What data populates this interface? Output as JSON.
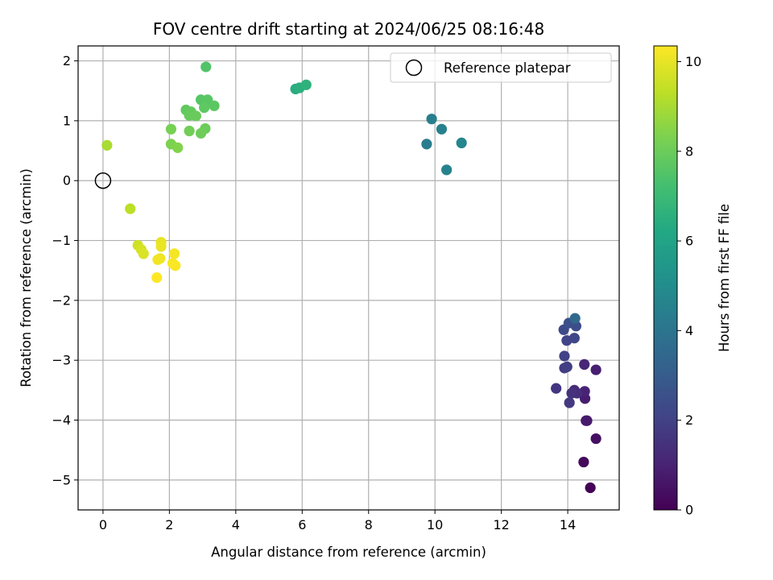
{
  "chart_data": {
    "type": "scatter",
    "title": "FOV centre drift starting at 2024/06/25 08:16:48",
    "xlabel": "Angular distance from reference (arcmin)",
    "ylabel": "Rotation from reference (arcmin)",
    "xlim": [
      -0.75,
      15.55
    ],
    "ylim": [
      -5.5,
      2.25
    ],
    "xticks": [
      0,
      2,
      4,
      6,
      8,
      10,
      12,
      14
    ],
    "yticks": [
      2,
      1,
      0,
      -1,
      -2,
      -3,
      -4,
      -5
    ],
    "grid": true,
    "legend": {
      "position": "top-right",
      "entries": [
        "Reference platepar"
      ]
    },
    "reference_point": {
      "x": 0,
      "y": 0
    },
    "colorbar": {
      "label": "Hours from first FF file",
      "colormap": "viridis",
      "range": [
        0,
        10.35
      ],
      "ticks": [
        0,
        2,
        4,
        6,
        8,
        10
      ]
    },
    "points": [
      {
        "x": 14.68,
        "y": -5.13,
        "c": 0.05
      },
      {
        "x": 14.48,
        "y": -4.7,
        "c": 0.25
      },
      {
        "x": 14.85,
        "y": -4.31,
        "c": 0.45
      },
      {
        "x": 14.58,
        "y": -4.01,
        "c": 0.65
      },
      {
        "x": 14.55,
        "y": -4.01,
        "c": 0.75
      },
      {
        "x": 14.52,
        "y": -3.64,
        "c": 0.85
      },
      {
        "x": 14.51,
        "y": -3.52,
        "c": 1.0
      },
      {
        "x": 14.5,
        "y": -3.07,
        "c": 1.1
      },
      {
        "x": 14.85,
        "y": -3.16,
        "c": 0.9
      },
      {
        "x": 14.2,
        "y": -3.5,
        "c": 1.25
      },
      {
        "x": 14.28,
        "y": -3.55,
        "c": 1.35
      },
      {
        "x": 14.12,
        "y": -3.55,
        "c": 1.45
      },
      {
        "x": 13.65,
        "y": -3.47,
        "c": 1.6
      },
      {
        "x": 14.05,
        "y": -3.71,
        "c": 1.7
      },
      {
        "x": 13.9,
        "y": -3.13,
        "c": 1.8
      },
      {
        "x": 13.98,
        "y": -3.11,
        "c": 1.9
      },
      {
        "x": 13.9,
        "y": -2.93,
        "c": 2.0
      },
      {
        "x": 13.97,
        "y": -2.67,
        "c": 2.1
      },
      {
        "x": 14.2,
        "y": -2.63,
        "c": 2.2
      },
      {
        "x": 13.88,
        "y": -2.49,
        "c": 2.3
      },
      {
        "x": 14.25,
        "y": -2.43,
        "c": 2.4
      },
      {
        "x": 14.03,
        "y": -2.38,
        "c": 2.5
      },
      {
        "x": 14.22,
        "y": -2.3,
        "c": 3.5
      },
      {
        "x": 9.75,
        "y": 0.61,
        "c": 4.3
      },
      {
        "x": 9.9,
        "y": 1.03,
        "c": 4.4
      },
      {
        "x": 10.2,
        "y": 0.86,
        "c": 4.5
      },
      {
        "x": 10.35,
        "y": 0.18,
        "c": 4.6
      },
      {
        "x": 10.8,
        "y": 0.63,
        "c": 4.7
      },
      {
        "x": 5.8,
        "y": 1.53,
        "c": 6.4
      },
      {
        "x": 5.92,
        "y": 1.55,
        "c": 6.5
      },
      {
        "x": 6.12,
        "y": 1.6,
        "c": 6.6
      },
      {
        "x": 3.1,
        "y": 1.9,
        "c": 7.5
      },
      {
        "x": 2.95,
        "y": 1.35,
        "c": 7.6
      },
      {
        "x": 3.15,
        "y": 1.35,
        "c": 7.65
      },
      {
        "x": 3.35,
        "y": 1.25,
        "c": 7.7
      },
      {
        "x": 3.05,
        "y": 1.22,
        "c": 7.75
      },
      {
        "x": 2.5,
        "y": 1.18,
        "c": 7.8
      },
      {
        "x": 2.65,
        "y": 1.15,
        "c": 7.85
      },
      {
        "x": 2.6,
        "y": 1.09,
        "c": 7.9
      },
      {
        "x": 2.8,
        "y": 1.08,
        "c": 7.95
      },
      {
        "x": 3.08,
        "y": 0.87,
        "c": 8.0
      },
      {
        "x": 2.95,
        "y": 0.79,
        "c": 8.05
      },
      {
        "x": 2.6,
        "y": 0.83,
        "c": 8.1
      },
      {
        "x": 2.05,
        "y": 0.86,
        "c": 8.2
      },
      {
        "x": 2.05,
        "y": 0.61,
        "c": 8.3
      },
      {
        "x": 2.25,
        "y": 0.55,
        "c": 8.4
      },
      {
        "x": 0.12,
        "y": 0.59,
        "c": 9.0
      },
      {
        "x": 0.82,
        "y": -0.47,
        "c": 9.3
      },
      {
        "x": 1.05,
        "y": -1.08,
        "c": 9.6
      },
      {
        "x": 1.15,
        "y": -1.15,
        "c": 9.7
      },
      {
        "x": 1.22,
        "y": -1.22,
        "c": 9.8
      },
      {
        "x": 1.75,
        "y": -1.03,
        "c": 10.0
      },
      {
        "x": 1.75,
        "y": -1.1,
        "c": 10.05
      },
      {
        "x": 1.72,
        "y": -1.3,
        "c": 10.1
      },
      {
        "x": 1.65,
        "y": -1.32,
        "c": 10.15
      },
      {
        "x": 2.15,
        "y": -1.22,
        "c": 10.2
      },
      {
        "x": 2.1,
        "y": -1.38,
        "c": 10.25
      },
      {
        "x": 2.18,
        "y": -1.42,
        "c": 10.3
      },
      {
        "x": 1.62,
        "y": -1.62,
        "c": 10.35
      }
    ]
  }
}
